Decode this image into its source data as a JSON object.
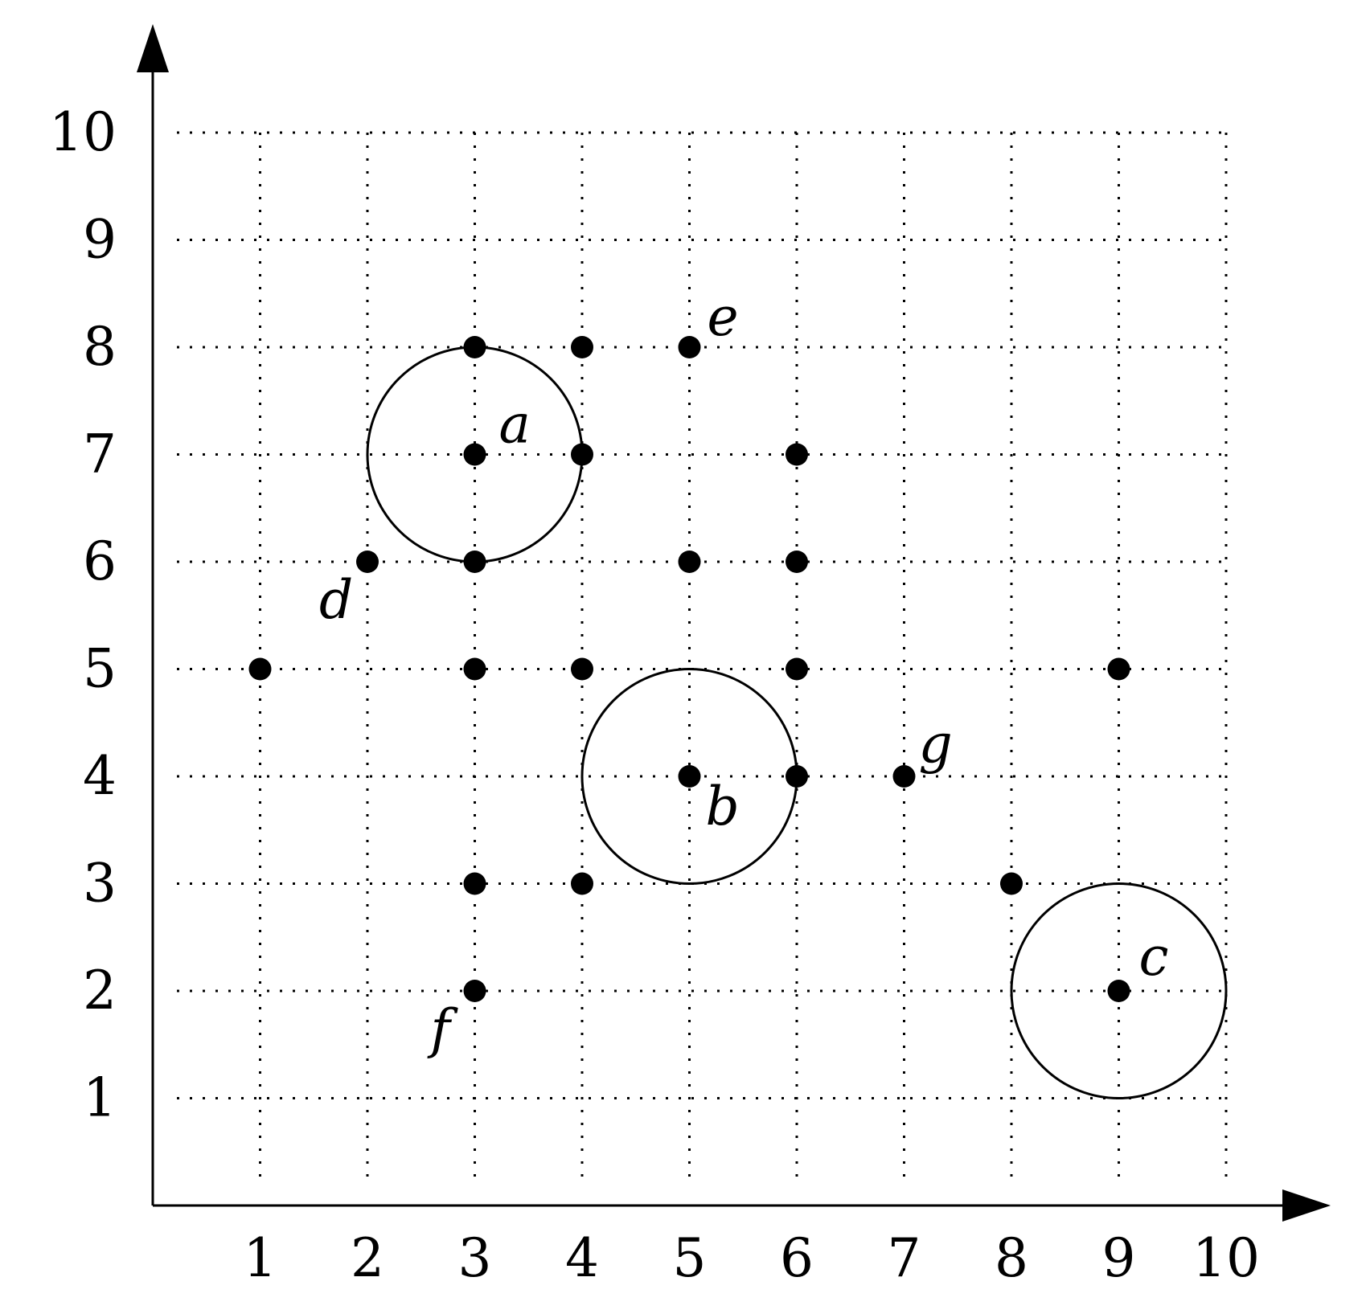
{
  "chart_data": {
    "type": "scatter",
    "title": "",
    "xlabel": "",
    "ylabel": "",
    "xlim": [
      0,
      10
    ],
    "ylim": [
      0,
      10
    ],
    "grid": true,
    "x_ticks": [
      "1",
      "2",
      "3",
      "4",
      "5",
      "6",
      "7",
      "8",
      "9",
      "10"
    ],
    "y_ticks": [
      "1",
      "2",
      "3",
      "4",
      "5",
      "6",
      "7",
      "8",
      "9",
      "10"
    ],
    "points": [
      {
        "x": 3,
        "y": 8
      },
      {
        "x": 4,
        "y": 8
      },
      {
        "x": 5,
        "y": 8,
        "label": "e"
      },
      {
        "x": 3,
        "y": 7,
        "label": "a"
      },
      {
        "x": 4,
        "y": 7
      },
      {
        "x": 6,
        "y": 7
      },
      {
        "x": 2,
        "y": 6,
        "label": "d"
      },
      {
        "x": 3,
        "y": 6
      },
      {
        "x": 5,
        "y": 6
      },
      {
        "x": 6,
        "y": 6
      },
      {
        "x": 1,
        "y": 5
      },
      {
        "x": 3,
        "y": 5
      },
      {
        "x": 4,
        "y": 5
      },
      {
        "x": 6,
        "y": 5
      },
      {
        "x": 9,
        "y": 5
      },
      {
        "x": 5,
        "y": 4,
        "label": "b"
      },
      {
        "x": 6,
        "y": 4
      },
      {
        "x": 7,
        "y": 4,
        "label": "g"
      },
      {
        "x": 3,
        "y": 3
      },
      {
        "x": 4,
        "y": 3
      },
      {
        "x": 8,
        "y": 3
      },
      {
        "x": 3,
        "y": 2,
        "label": "f"
      },
      {
        "x": 9,
        "y": 2,
        "label": "c"
      }
    ],
    "circles": [
      {
        "cx": 3,
        "cy": 7,
        "r": 1
      },
      {
        "cx": 5,
        "cy": 4,
        "r": 1
      },
      {
        "cx": 9,
        "cy": 2,
        "r": 1
      }
    ],
    "colors": {
      "points": "#000000",
      "grid": "#000000",
      "axes": "#000000",
      "background": "#ffffff"
    }
  }
}
